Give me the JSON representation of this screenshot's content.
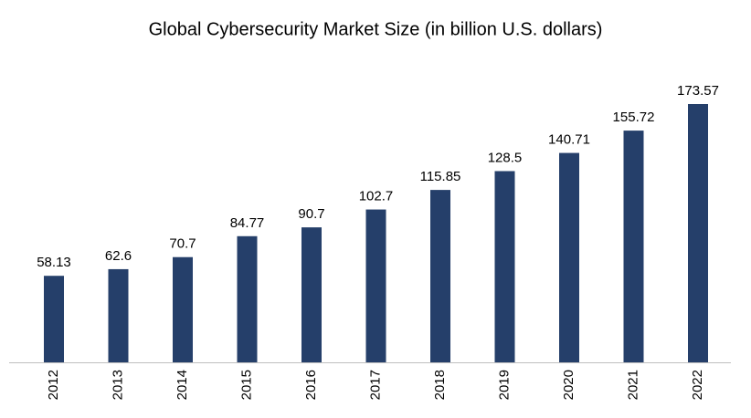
{
  "chart_data": {
    "type": "bar",
    "title": "Global Cybersecurity Market Size (in billion U.S. dollars)",
    "categories": [
      "2012",
      "2013",
      "2014",
      "2015",
      "2016",
      "2017",
      "2018",
      "2019",
      "2020",
      "2021",
      "2022"
    ],
    "values": [
      58.13,
      62.6,
      70.7,
      84.77,
      90.7,
      102.7,
      115.85,
      128.5,
      140.71,
      155.72,
      173.57
    ],
    "color": "#253f6a"
  }
}
